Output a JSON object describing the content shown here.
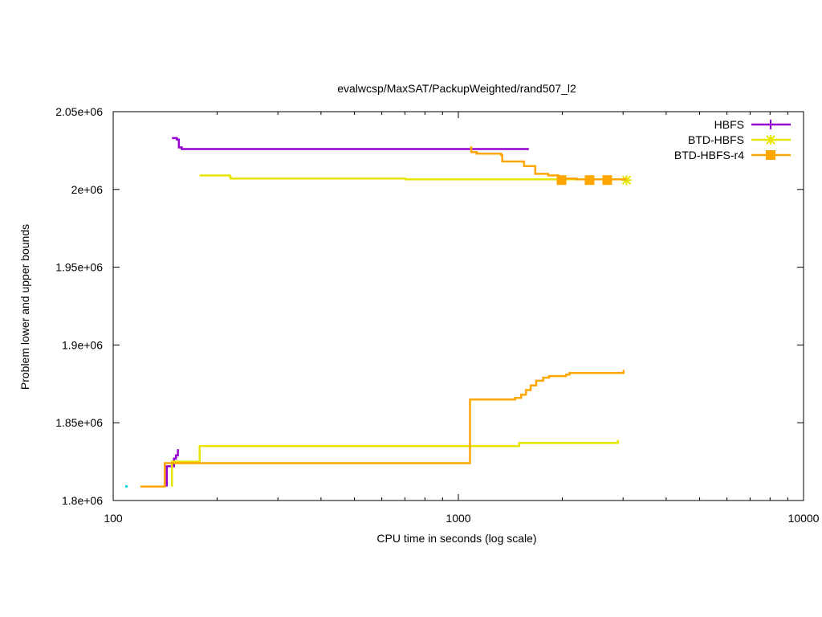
{
  "chart_data": {
    "type": "line",
    "title": "evalwcsp/MaxSAT/PackupWeighted/rand507_l2",
    "xlabel": "CPU time in seconds (log scale)",
    "ylabel": "Problem lower and upper bounds",
    "xscale": "log",
    "xlim": [
      100,
      10000
    ],
    "ylim": [
      1800000,
      2050000
    ],
    "x_ticks": [
      {
        "value": 100,
        "label": "100"
      },
      {
        "value": 1000,
        "label": "1000"
      },
      {
        "value": 10000,
        "label": "10000"
      }
    ],
    "y_ticks": [
      {
        "value": 1800000,
        "label": "1.8e+06"
      },
      {
        "value": 1850000,
        "label": "1.85e+06"
      },
      {
        "value": 1900000,
        "label": "1.9e+06"
      },
      {
        "value": 1950000,
        "label": "1.95e+06"
      },
      {
        "value": 2000000,
        "label": "2e+06"
      },
      {
        "value": 2050000,
        "label": "2.05e+06"
      }
    ],
    "grid": false,
    "legend_position": "top-right",
    "series": [
      {
        "name": "HBFS",
        "color": "#9400d3",
        "marker": "plus",
        "upper": [
          [
            148,
            2033000
          ],
          [
            153,
            2032000
          ],
          [
            155,
            2027000
          ],
          [
            158,
            2026000
          ],
          [
            1600,
            2026000
          ]
        ],
        "lower": [
          [
            143,
            1809000
          ],
          [
            143,
            1822000
          ],
          [
            148,
            1822000
          ],
          [
            150,
            1827000
          ],
          [
            152,
            1829000
          ],
          [
            154,
            1833000
          ]
        ]
      },
      {
        "name": "BTD-HBFS",
        "color": "#e5e500",
        "marker": "star",
        "upper": [
          [
            178,
            2009000
          ],
          [
            185,
            2009000
          ],
          [
            218,
            2008000
          ],
          [
            219,
            2007000
          ],
          [
            700,
            2007000
          ],
          [
            702,
            2006500
          ],
          [
            3050,
            2006000
          ]
        ],
        "lower": [
          [
            148,
            1809000
          ],
          [
            148,
            1825000
          ],
          [
            178,
            1825000
          ],
          [
            178,
            1835000
          ],
          [
            1500,
            1835000
          ],
          [
            1500,
            1837000
          ],
          [
            2900,
            1837000
          ],
          [
            2900,
            1839000
          ]
        ],
        "markers": [
          [
            3070,
            2006000
          ]
        ]
      },
      {
        "name": "BTD-HBFS-r4",
        "color": "#ffa500",
        "marker": "square",
        "upper": [
          [
            1080,
            2027000
          ],
          [
            1090,
            2024000
          ],
          [
            1130,
            2023000
          ],
          [
            1330,
            2022000
          ],
          [
            1340,
            2018000
          ],
          [
            1540,
            2018000
          ],
          [
            1550,
            2015000
          ],
          [
            1660,
            2015000
          ],
          [
            1670,
            2010000
          ],
          [
            1820,
            2009000
          ],
          [
            1950,
            2007000
          ],
          [
            2200,
            2006500
          ],
          [
            3050,
            2006000
          ]
        ],
        "lower": [
          [
            120,
            1809000
          ],
          [
            140,
            1809000
          ],
          [
            141,
            1824000
          ],
          [
            1080,
            1824000
          ],
          [
            1081,
            1865000
          ],
          [
            1390,
            1865000
          ],
          [
            1460,
            1866000
          ],
          [
            1520,
            1868000
          ],
          [
            1570,
            1871000
          ],
          [
            1620,
            1874000
          ],
          [
            1680,
            1877000
          ],
          [
            1760,
            1879000
          ],
          [
            1830,
            1880000
          ],
          [
            2050,
            1881000
          ],
          [
            2100,
            1882000
          ],
          [
            3000,
            1882000
          ],
          [
            3010,
            1884000
          ]
        ],
        "markers": [
          [
            1990,
            2006000
          ],
          [
            2400,
            2006000
          ],
          [
            2700,
            2006000
          ]
        ]
      }
    ]
  }
}
